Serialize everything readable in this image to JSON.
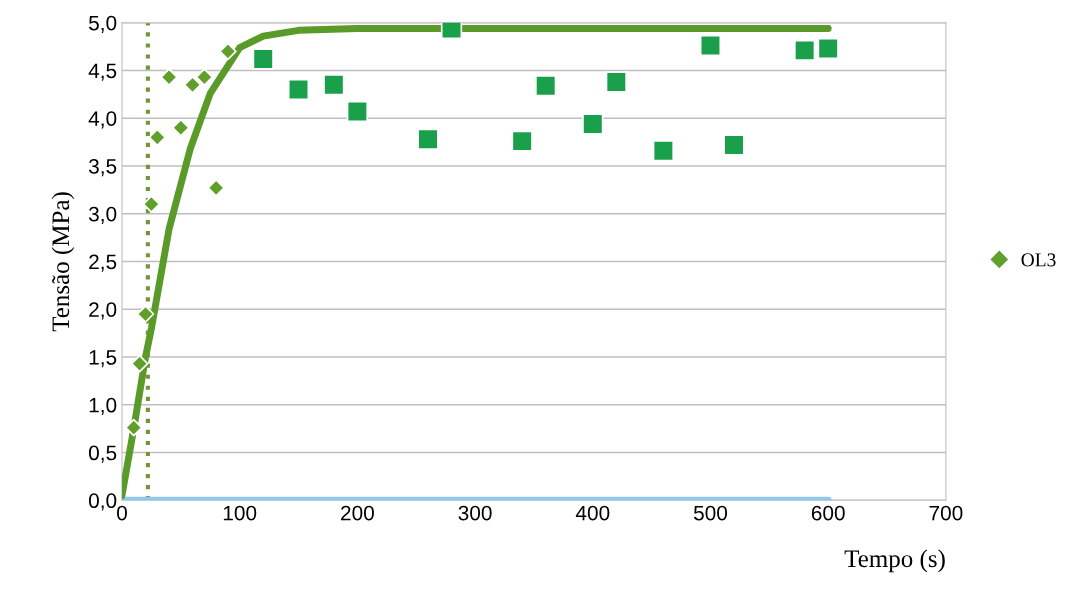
{
  "chart_data": {
    "type": "scatter",
    "xlabel": "Tempo (s)",
    "ylabel": "Tensão (MPa)",
    "xlim": [
      0,
      700
    ],
    "xticks": [
      0,
      100,
      200,
      300,
      400,
      500,
      600,
      700
    ],
    "ylim": [
      0,
      5
    ],
    "yticks": [
      {
        "value": 0,
        "label": "0,0"
      },
      {
        "value": 0.5,
        "label": "0,5"
      },
      {
        "value": 1,
        "label": "1,0"
      },
      {
        "value": 1.5,
        "label": "1,5"
      },
      {
        "value": 2,
        "label": "2,0"
      },
      {
        "value": 2.5,
        "label": "2,5"
      },
      {
        "value": 3,
        "label": "3,0"
      },
      {
        "value": 3.5,
        "label": "3,5"
      },
      {
        "value": 4,
        "label": "4,0"
      },
      {
        "value": 4.5,
        "label": "4,5"
      },
      {
        "value": 5,
        "label": "5,0"
      }
    ],
    "grid": "y",
    "legend": "right",
    "ref_lines": [
      {
        "axis": "x",
        "value": 22,
        "color": "#77933c",
        "line_style": "dotted"
      }
    ],
    "series": [
      {
        "type": "line",
        "color": "#8fc9f0",
        "marker": "none",
        "line_style": "solid",
        "x": [
          0,
          600
        ],
        "values": [
          0,
          0
        ]
      },
      {
        "type": "line",
        "color": "#5a9a28",
        "marker": "none",
        "line_style": "solid",
        "x": [
          0,
          10,
          20,
          25,
          40,
          58,
          75,
          100,
          120,
          150,
          200,
          300,
          400,
          500,
          600
        ],
        "values": [
          0.05,
          0.75,
          1.5,
          1.8,
          2.84,
          3.68,
          4.26,
          4.74,
          4.86,
          4.92,
          4.94,
          4.94,
          4.94,
          4.94,
          4.94
        ]
      },
      {
        "name": "OL3",
        "color": "#60a02a",
        "marker": "diamond",
        "x": [
          10,
          15,
          20,
          25,
          30,
          40,
          50,
          60,
          70,
          80,
          90
        ],
        "values": [
          0.76,
          1.43,
          1.95,
          3.1,
          3.8,
          4.43,
          3.9,
          4.35,
          4.43,
          3.27,
          4.7
        ]
      },
      {
        "color": "#1aa04a",
        "marker": "square",
        "x": [
          120,
          150,
          180,
          200,
          260,
          280,
          340,
          360,
          400,
          420,
          460,
          500,
          520,
          580,
          600
        ],
        "values": [
          4.62,
          4.3,
          4.35,
          4.07,
          3.78,
          4.94,
          3.76,
          4.34,
          3.94,
          4.38,
          3.66,
          4.76,
          3.72,
          4.71,
          4.73
        ]
      }
    ]
  }
}
